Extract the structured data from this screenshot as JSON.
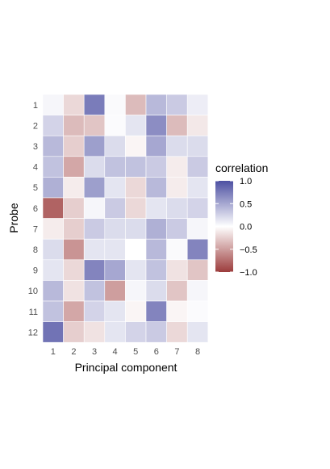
{
  "chart_data": {
    "type": "heatmap",
    "xlabel": "Principal component",
    "ylabel": "Probe",
    "x_categories": [
      "1",
      "2",
      "3",
      "4",
      "5",
      "6",
      "7",
      "8"
    ],
    "y_categories": [
      "1",
      "2",
      "3",
      "4",
      "5",
      "6",
      "7",
      "8",
      "9",
      "10",
      "11",
      "12"
    ],
    "values": [
      [
        0.05,
        -0.2,
        0.75,
        0.03,
        -0.35,
        0.4,
        0.3,
        0.1
      ],
      [
        0.25,
        -0.35,
        -0.3,
        0.02,
        0.15,
        0.65,
        -0.35,
        -0.12
      ],
      [
        0.4,
        -0.25,
        0.55,
        0.2,
        -0.05,
        0.5,
        0.2,
        0.2
      ],
      [
        0.35,
        -0.45,
        0.2,
        0.35,
        0.35,
        0.3,
        -0.1,
        0.3
      ],
      [
        0.45,
        -0.1,
        0.55,
        0.15,
        -0.2,
        0.4,
        -0.1,
        0.15
      ],
      [
        -0.8,
        -0.25,
        0.05,
        0.3,
        -0.2,
        0.15,
        0.2,
        0.25
      ],
      [
        -0.1,
        -0.25,
        0.3,
        0.2,
        0.2,
        0.45,
        0.3,
        0.05
      ],
      [
        0.2,
        -0.55,
        0.15,
        0.15,
        0.0,
        0.4,
        0.03,
        0.7
      ],
      [
        0.15,
        -0.2,
        0.7,
        0.5,
        0.15,
        0.35,
        -0.15,
        -0.3
      ],
      [
        0.4,
        -0.15,
        0.35,
        -0.5,
        0.05,
        0.2,
        -0.3,
        0.05
      ],
      [
        0.35,
        -0.45,
        0.25,
        0.15,
        -0.05,
        0.7,
        -0.05,
        0.02
      ],
      [
        0.8,
        -0.25,
        -0.15,
        0.15,
        0.25,
        0.3,
        -0.2,
        0.15
      ]
    ],
    "legend": {
      "title": "correlation",
      "ticks": [
        "1.0",
        "0.5",
        "0.0",
        "−0.5",
        "−1.0"
      ],
      "tick_values": [
        1.0,
        0.5,
        0.0,
        -0.5,
        -1.0
      ],
      "range": [
        -1,
        1
      ],
      "placement": "right"
    },
    "colors": {
      "low": "#8b1a1a",
      "mid": "#ffffff",
      "high": "#2e3192"
    },
    "grid": false
  }
}
